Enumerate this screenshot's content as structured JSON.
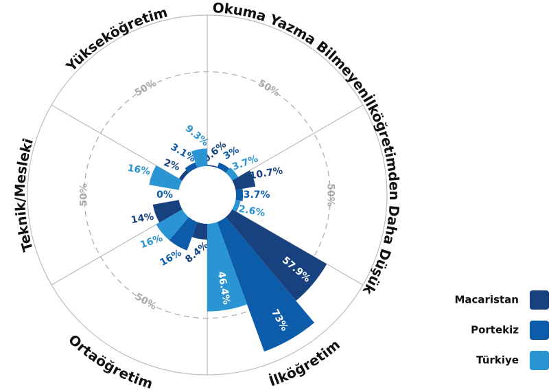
{
  "chart_data": {
    "type": "polar-bar",
    "categories": [
      "Okuma Yazma Bilmeyen",
      "İlköğretimden Daha Düşük",
      "İlköğretim",
      "Ortaöğretim",
      "Teknik/Mesleki",
      "Yükseköğretim"
    ],
    "series": [
      {
        "name": "Macaristan",
        "color": "#17427f",
        "values": [
          0.6,
          10.7,
          57.9,
          8.4,
          14,
          2
        ],
        "value_labels": [
          "0.6%",
          "10.7%",
          "57.9%",
          "8.4%",
          "14%",
          "2%"
        ]
      },
      {
        "name": "Portekiz",
        "color": "#0d5ca9",
        "values": [
          3,
          3.7,
          73,
          16,
          0,
          3.1
        ],
        "value_labels": [
          "3%",
          "3.7%",
          "73%",
          "16%",
          "0%",
          "3.1%"
        ]
      },
      {
        "name": "Türkiye",
        "color": "#2a95d2",
        "values": [
          3.7,
          2.6,
          46.4,
          16,
          16,
          9.3
        ],
        "value_labels": [
          "3.7%",
          "2.6%",
          "46.4%",
          "16%",
          "16%",
          "9.3%"
        ]
      }
    ],
    "rlim": [
      0,
      80
    ],
    "rticks": [
      {
        "value": 50,
        "label": "50%"
      }
    ],
    "legend": "right"
  }
}
